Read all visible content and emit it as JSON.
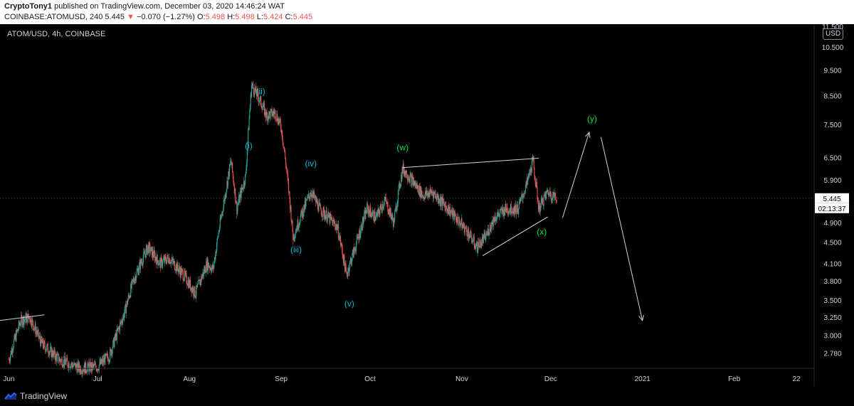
{
  "header": {
    "author": "CryptoTony1",
    "published_text": " published on TradingView.com, December 03, 2020 14:46:24 WAT",
    "symbol": "COINBASE:ATOMUSD, 240",
    "last": "5.445",
    "arrow": "▼",
    "change": "−0.070 (−1.27%)",
    "o_label": "O:",
    "o_value": "5.498",
    "h_label": "H:",
    "h_value": "5.498",
    "l_label": "L:",
    "l_value": "5.424",
    "c_label": "C:",
    "c_value": "5.445"
  },
  "chart_title": "ATOM/USD, 4h, COINBASE",
  "currency_button": "USD",
  "price_badge": "5.445",
  "countdown_badge": "02:13:37",
  "footer": {
    "brand": "TradingView"
  },
  "colors": {
    "up": "#26a69a",
    "down": "#ef5350",
    "wave_cyan": "#00bcd4",
    "wave_green": "#00e640",
    "line": "#d1d4dc"
  },
  "chart_data": {
    "type": "candlestick",
    "title": "ATOM/USD, 4h, COINBASE",
    "y_scale": "log",
    "ylim": [
      2.6,
      11.6
    ],
    "xlim": [
      "2020-05-29",
      "2021-02-28"
    ],
    "y_ticks": [
      "11.500",
      "10.500",
      "9.500",
      "8.500",
      "7.500",
      "6.500",
      "5.900",
      "5.445",
      "4.900",
      "4.500",
      "4.100",
      "3.800",
      "3.500",
      "3.250",
      "3.000",
      "2.780"
    ],
    "x_ticks": [
      {
        "label": "Jun",
        "date": "2020-06-01"
      },
      {
        "label": "Jul",
        "date": "2020-07-01"
      },
      {
        "label": "Aug",
        "date": "2020-08-01"
      },
      {
        "label": "Sep",
        "date": "2020-09-01"
      },
      {
        "label": "Oct",
        "date": "2020-10-01"
      },
      {
        "label": "Nov",
        "date": "2020-11-01"
      },
      {
        "label": "Dec",
        "date": "2020-12-01"
      },
      {
        "label": "2021",
        "date": "2021-01-01"
      },
      {
        "label": "Feb",
        "date": "2021-02-01"
      },
      {
        "label": "22",
        "date": "2021-02-22"
      }
    ],
    "price_path": [
      [
        "2020-06-01",
        2.7
      ],
      [
        "2020-06-05",
        3.2
      ],
      [
        "2020-06-08",
        3.25
      ],
      [
        "2020-06-12",
        2.9
      ],
      [
        "2020-06-18",
        2.7
      ],
      [
        "2020-06-25",
        2.6
      ],
      [
        "2020-07-01",
        2.62
      ],
      [
        "2020-07-05",
        2.75
      ],
      [
        "2020-07-10",
        3.3
      ],
      [
        "2020-07-13",
        3.8
      ],
      [
        "2020-07-18",
        4.4
      ],
      [
        "2020-07-22",
        4.1
      ],
      [
        "2020-07-25",
        4.2
      ],
      [
        "2020-07-30",
        3.9
      ],
      [
        "2020-08-03",
        3.6
      ],
      [
        "2020-08-07",
        4.1
      ],
      [
        "2020-08-09",
        4.0
      ],
      [
        "2020-08-13",
        5.5
      ],
      [
        "2020-08-15",
        6.4
      ],
      [
        "2020-08-17",
        5.2
      ],
      [
        "2020-08-20",
        6.0
      ],
      [
        "2020-08-22",
        8.9
      ],
      [
        "2020-08-25",
        8.3
      ],
      [
        "2020-08-27",
        7.8
      ],
      [
        "2020-08-30",
        7.9
      ],
      [
        "2020-09-01",
        7.4
      ],
      [
        "2020-09-03",
        6.0
      ],
      [
        "2020-09-05",
        4.6
      ],
      [
        "2020-09-08",
        5.1
      ],
      [
        "2020-09-11",
        5.6
      ],
      [
        "2020-09-14",
        5.2
      ],
      [
        "2020-09-17",
        5.0
      ],
      [
        "2020-09-20",
        4.8
      ],
      [
        "2020-09-23",
        3.9
      ],
      [
        "2020-09-26",
        4.4
      ],
      [
        "2020-09-30",
        5.2
      ],
      [
        "2020-10-03",
        5.0
      ],
      [
        "2020-10-06",
        5.4
      ],
      [
        "2020-10-09",
        4.9
      ],
      [
        "2020-10-12",
        6.2
      ],
      [
        "2020-10-15",
        5.9
      ],
      [
        "2020-10-19",
        5.5
      ],
      [
        "2020-10-22",
        5.6
      ],
      [
        "2020-10-26",
        5.3
      ],
      [
        "2020-10-30",
        5.0
      ],
      [
        "2020-11-03",
        4.7
      ],
      [
        "2020-11-06",
        4.4
      ],
      [
        "2020-11-09",
        4.6
      ],
      [
        "2020-11-12",
        5.0
      ],
      [
        "2020-11-16",
        5.2
      ],
      [
        "2020-11-20",
        5.2
      ],
      [
        "2020-11-23",
        5.8
      ],
      [
        "2020-11-25",
        6.4
      ],
      [
        "2020-11-27",
        5.2
      ],
      [
        "2020-11-30",
        5.6
      ],
      [
        "2020-12-03",
        5.445
      ]
    ],
    "annotations": [
      {
        "text": "(i)",
        "date": "2020-08-21",
        "price": 6.75,
        "color": "cyan"
      },
      {
        "text": "(ii)",
        "date": "2020-08-25",
        "price": 8.55,
        "color": "cyan"
      },
      {
        "text": "(iii)",
        "date": "2020-09-06",
        "price": 4.3,
        "color": "cyan"
      },
      {
        "text": "(iv)",
        "date": "2020-09-11",
        "price": 6.25,
        "color": "cyan"
      },
      {
        "text": "(v)",
        "date": "2020-09-24",
        "price": 3.4,
        "color": "cyan"
      },
      {
        "text": "(w)",
        "date": "2020-10-12",
        "price": 6.7,
        "color": "green"
      },
      {
        "text": "(x)",
        "date": "2020-11-28",
        "price": 4.65,
        "color": "green"
      },
      {
        "text": "(y)",
        "date": "2020-12-15",
        "price": 7.6,
        "color": "green"
      }
    ],
    "trendlines": [
      {
        "from": [
          "2020-05-29",
          3.2
        ],
        "to": [
          "2020-06-13",
          3.28
        ]
      },
      {
        "from": [
          "2020-10-12",
          6.22
        ],
        "to": [
          "2020-11-27",
          6.48
        ]
      },
      {
        "from": [
          "2020-11-08",
          4.24
        ],
        "to": [
          "2020-11-30",
          5.02
        ]
      }
    ],
    "projection": [
      [
        "2020-12-05",
        5.0
      ],
      [
        "2020-12-14",
        7.25
      ],
      [
        "2020-12-18",
        7.1
      ],
      [
        "2021-01-01",
        3.2
      ]
    ]
  }
}
